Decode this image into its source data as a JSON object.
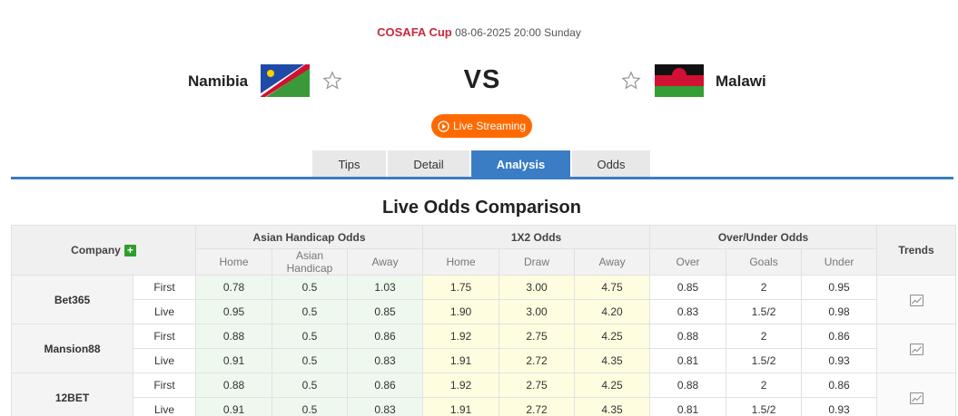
{
  "match": {
    "league": "COSAFA Cup",
    "kickoff": "08-06-2025 20:00 Sunday",
    "home_team": "Namibia",
    "away_team": "Malawi",
    "vs": "VS",
    "live_label": "Live Streaming"
  },
  "tabs": [
    {
      "label": "Tips"
    },
    {
      "label": "Detail"
    },
    {
      "label": "Analysis",
      "active": true
    },
    {
      "label": "Odds"
    }
  ],
  "section_title": "Live Odds Comparison",
  "table": {
    "company_header": "Company",
    "plus_label": "+",
    "trends_header": "Trends",
    "groups": {
      "asian": "Asian Handicap Odds",
      "x12": "1X2 Odds",
      "ou": "Over/Under Odds"
    },
    "subheaders": {
      "asian": [
        "Home",
        "Asian Handicap",
        "Away"
      ],
      "x12": [
        "Home",
        "Draw",
        "Away"
      ],
      "ou": [
        "Over",
        "Goals",
        "Under"
      ]
    },
    "companies": [
      {
        "name": "Bet365",
        "rows": [
          {
            "phase": "First",
            "ah": [
              "0.78",
              "0.5",
              "1.03"
            ],
            "x12": [
              "1.75",
              "3.00",
              "4.75"
            ],
            "ou": [
              "0.85",
              "2",
              "0.95"
            ]
          },
          {
            "phase": "Live",
            "ah": [
              "0.95",
              "0.5",
              "0.85"
            ],
            "x12": [
              "1.90",
              "3.00",
              "4.20"
            ],
            "ou": [
              "0.83",
              "1.5/2",
              "0.98"
            ]
          }
        ]
      },
      {
        "name": "Mansion88",
        "rows": [
          {
            "phase": "First",
            "ah": [
              "0.88",
              "0.5",
              "0.86"
            ],
            "x12": [
              "1.92",
              "2.75",
              "4.25"
            ],
            "ou": [
              "0.88",
              "2",
              "0.86"
            ]
          },
          {
            "phase": "Live",
            "ah": [
              "0.91",
              "0.5",
              "0.83"
            ],
            "x12": [
              "1.91",
              "2.72",
              "4.35"
            ],
            "ou": [
              "0.81",
              "1.5/2",
              "0.93"
            ]
          }
        ]
      },
      {
        "name": "12BET",
        "rows": [
          {
            "phase": "First",
            "ah": [
              "0.88",
              "0.5",
              "0.86"
            ],
            "x12": [
              "1.92",
              "2.75",
              "4.25"
            ],
            "ou": [
              "0.88",
              "2",
              "0.86"
            ]
          },
          {
            "phase": "Live",
            "ah": [
              "0.91",
              "0.5",
              "0.83"
            ],
            "x12": [
              "1.91",
              "2.72",
              "4.35"
            ],
            "ou": [
              "0.81",
              "1.5/2",
              "0.93"
            ]
          }
        ]
      }
    ]
  },
  "colors": {
    "league": "#c8283c",
    "accent": "#3b7dc4",
    "live_button": "#ff6a00",
    "asian_bg": "#eef8ee",
    "x12_bg": "#fffde0"
  }
}
